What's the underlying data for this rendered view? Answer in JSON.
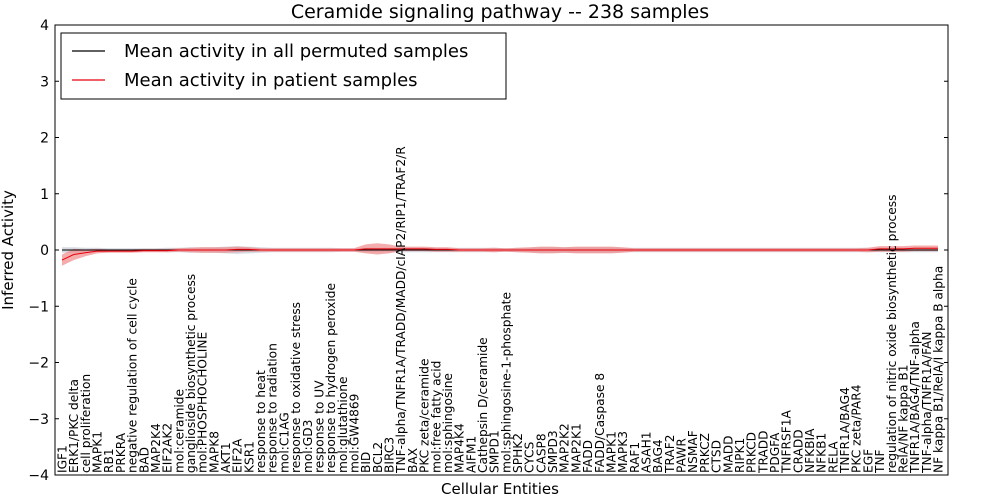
{
  "chart_data": {
    "type": "line",
    "title": "Ceramide signaling pathway -- 238 samples",
    "xlabel": "Cellular Entities",
    "ylabel": "Inferred Activity",
    "ylim": [
      -4,
      4
    ],
    "yticks": [
      -4,
      -3,
      -2,
      -1,
      0,
      1,
      2,
      3,
      4
    ],
    "grid": false,
    "legend_position": "top-left",
    "categories": [
      "IGF1",
      "ERK1/PKC delta",
      "cell proliferation",
      "MAPK1",
      "RB1",
      "PRKRA",
      "negative regulation of cell cycle",
      "BAD",
      "MAP2K4",
      "EIF2AK2",
      "mol:ceramide",
      "ganglioside biosynthetic process",
      "mol:PHOSPHOCHOLINE",
      "MAPK8",
      "AKT1",
      "EIF2A",
      "KSR1",
      "response to heat",
      "response to radiation",
      "mol:C1AG",
      "response to oxidative stress",
      "mol:GD3",
      "response to UV",
      "response to hydrogen peroxide",
      "mol:glutathione",
      "mol:GW4869",
      "BID",
      "BCL2",
      "BIRC3",
      "TNF-alpha/TNFR1A/TRADD/MADD/cIAP2/RIP1/TRAF2/R",
      "BAX",
      "PKC zeta/ceramide",
      "mol:free fatty acid",
      "mol:sphingosine",
      "MAP4K4",
      "AIFM1",
      "Cathepsin D/ceramide",
      "SMPD1",
      "mol:sphingosine-1-phosphate",
      "SPHK2",
      "CYCS",
      "CASP8",
      "SMPD3",
      "MAP2K2",
      "MAP2K1",
      "FADD",
      "FADD/Caspase 8",
      "MAPK1",
      "MAPK3",
      "RAF1",
      "ASAH1",
      "BAG4",
      "TRAF2",
      "PAWR",
      "NSMAF",
      "PRKCZ",
      "CTSD",
      "MADD",
      "RIPK1",
      "PRKCD",
      "TRADD",
      "PDGFA",
      "TNFRSF1A",
      "CRADD",
      "NFKBIA",
      "NFKB1",
      "RELA",
      "TNFR1A/BAG4",
      "PKC zeta/PAR4",
      "EGF",
      "TNF",
      "regulation of nitric oxide biosynthetic process",
      "RelA/NF kappa B1",
      "TNFR1A/BAG4/TNF-alpha",
      "TNF-alpha/TNFR1A/FAN",
      "NF kappa B1/RelA/I kappa B alpha"
    ],
    "series": [
      {
        "name": "Mean activity in all permuted samples",
        "color": "#000000",
        "band_color": "#c8cdd8",
        "values": [
          0,
          0,
          0,
          0,
          0,
          0,
          0,
          0,
          0,
          0,
          0,
          0,
          0,
          0,
          0,
          0,
          0,
          0,
          0,
          0,
          0,
          0,
          0,
          0,
          0,
          0,
          0,
          0,
          0,
          0,
          0,
          0,
          0,
          0,
          0,
          0,
          0,
          0,
          0,
          0,
          0,
          0,
          0,
          0,
          0,
          0,
          0,
          0,
          0,
          0,
          0,
          0,
          0,
          0,
          0,
          0,
          0,
          0,
          0,
          0,
          0,
          0,
          0,
          0,
          0,
          0,
          0,
          0,
          0,
          0,
          0,
          0,
          0,
          0,
          0,
          0
        ],
        "spread": [
          0.05,
          0.05,
          0.04,
          0.04,
          0.03,
          0.03,
          0.03,
          0.03,
          0.03,
          0.04,
          0.04,
          0.05,
          0.05,
          0.05,
          0.06,
          0.07,
          0.06,
          0.05,
          0.04,
          0.04,
          0.04,
          0.04,
          0.04,
          0.04,
          0.03,
          0.03,
          0.04,
          0.04,
          0.04,
          0.04,
          0.04,
          0.04,
          0.04,
          0.04,
          0.04,
          0.04,
          0.04,
          0.04,
          0.03,
          0.04,
          0.04,
          0.05,
          0.05,
          0.05,
          0.05,
          0.05,
          0.05,
          0.05,
          0.04,
          0.04,
          0.04,
          0.04,
          0.04,
          0.04,
          0.04,
          0.04,
          0.04,
          0.04,
          0.04,
          0.04,
          0.04,
          0.04,
          0.04,
          0.04,
          0.04,
          0.04,
          0.04,
          0.04,
          0.04,
          0.04,
          0.04,
          0.04,
          0.04,
          0.04,
          0.04,
          0.04
        ]
      },
      {
        "name": "Mean activity in patient samples",
        "color": "#e8000b",
        "band_color": "#f08080",
        "values": [
          -0.18,
          -0.08,
          -0.05,
          -0.02,
          -0.02,
          -0.02,
          -0.02,
          -0.01,
          -0.01,
          -0.01,
          0,
          0,
          0,
          0,
          0,
          0.01,
          0.01,
          0,
          0,
          0,
          0,
          0,
          0,
          0,
          0,
          0,
          0.02,
          0.02,
          0.02,
          0.02,
          0.02,
          0.02,
          0.01,
          0.01,
          0,
          0,
          0,
          0,
          0,
          0,
          0,
          0,
          0,
          0,
          0,
          0,
          0,
          0,
          0,
          0,
          0,
          0,
          0,
          0,
          0,
          0,
          0,
          0,
          0,
          0,
          0,
          0,
          0,
          0,
          0,
          0,
          0,
          0,
          0,
          0,
          0.02,
          0.02,
          0.02,
          0.03,
          0.03,
          0.03
        ],
        "spread": [
          0.1,
          0.1,
          0.06,
          0.04,
          0.03,
          0.03,
          0.03,
          0.03,
          0.03,
          0.03,
          0.03,
          0.04,
          0.05,
          0.05,
          0.05,
          0.05,
          0.04,
          0.03,
          0.03,
          0.03,
          0.03,
          0.03,
          0.03,
          0.03,
          0.03,
          0.03,
          0.08,
          0.1,
          0.08,
          0.04,
          0.04,
          0.04,
          0.04,
          0.04,
          0.03,
          0.03,
          0.03,
          0.04,
          0.03,
          0.04,
          0.05,
          0.06,
          0.06,
          0.05,
          0.06,
          0.06,
          0.06,
          0.06,
          0.05,
          0.03,
          0.03,
          0.03,
          0.03,
          0.03,
          0.03,
          0.03,
          0.03,
          0.03,
          0.03,
          0.03,
          0.03,
          0.03,
          0.03,
          0.03,
          0.03,
          0.03,
          0.03,
          0.03,
          0.03,
          0.04,
          0.05,
          0.05,
          0.05,
          0.05,
          0.05,
          0.05
        ]
      }
    ]
  }
}
